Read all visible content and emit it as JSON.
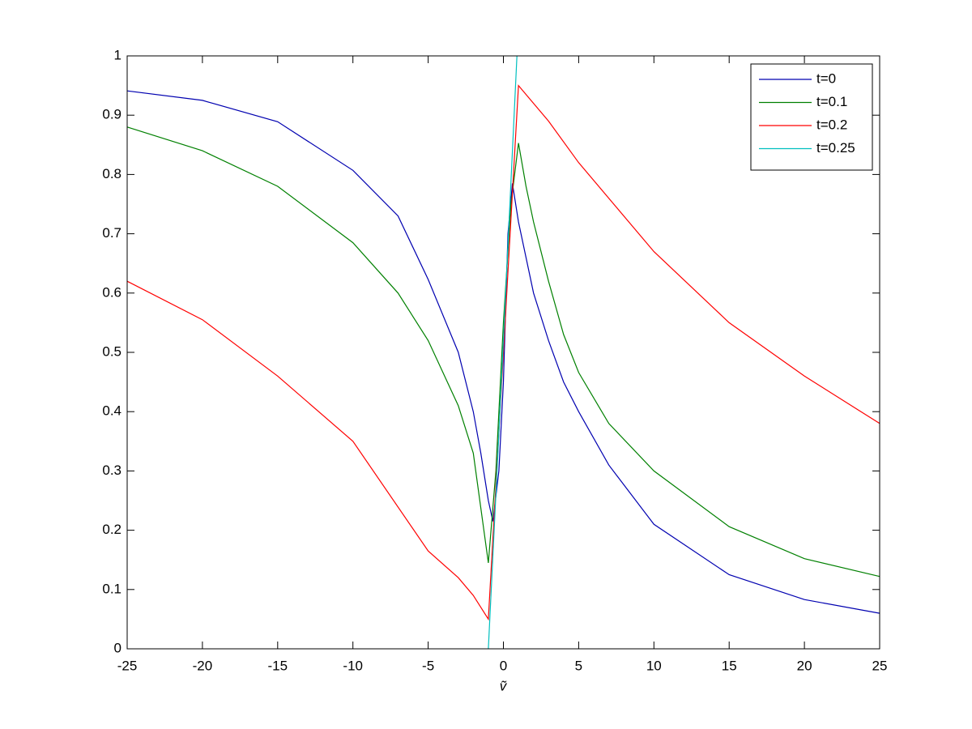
{
  "chart_data": {
    "type": "line",
    "xlabel": "ṽ",
    "xlim": [
      -25,
      25
    ],
    "xticks": [
      -25,
      -20,
      -15,
      -10,
      -5,
      0,
      5,
      10,
      15,
      20,
      25
    ],
    "ylim": [
      0,
      1
    ],
    "yticks": [
      0,
      0.1,
      0.2,
      0.3,
      0.4,
      0.5,
      0.6,
      0.7,
      0.8,
      0.9,
      1
    ],
    "legend": "upper-right",
    "series": [
      {
        "name": "t=0",
        "color": "#0000b0",
        "x": [
          -25,
          -20,
          -15,
          -10,
          -7,
          -5,
          -3,
          -2,
          -1.5,
          -1,
          -0.7,
          -0.3,
          0,
          0.3,
          0.6,
          1,
          1.5,
          2,
          3,
          4,
          5,
          7,
          10,
          15,
          20,
          25
        ],
        "values": [
          0.941,
          0.925,
          0.889,
          0.807,
          0.73,
          0.623,
          0.5,
          0.4,
          0.33,
          0.25,
          0.215,
          0.3,
          0.45,
          0.7,
          0.785,
          0.72,
          0.66,
          0.6,
          0.52,
          0.45,
          0.4,
          0.31,
          0.21,
          0.125,
          0.083,
          0.06
        ]
      },
      {
        "name": "t=0.1",
        "color": "#008000",
        "x": [
          -25,
          -20,
          -15,
          -10,
          -7,
          -5,
          -3,
          -2,
          -1,
          -0.5,
          0,
          0.5,
          1,
          1.5,
          2,
          3,
          4,
          5,
          7,
          10,
          15,
          20,
          25
        ],
        "values": [
          0.88,
          0.84,
          0.78,
          0.685,
          0.6,
          0.52,
          0.41,
          0.33,
          0.145,
          0.3,
          0.55,
          0.75,
          0.853,
          0.78,
          0.72,
          0.62,
          0.53,
          0.466,
          0.38,
          0.3,
          0.206,
          0.152,
          0.122
        ]
      },
      {
        "name": "t=0.2",
        "color": "#ff0000",
        "x": [
          -25,
          -20,
          -15,
          -10,
          -5,
          -3,
          -2,
          -1,
          0,
          1,
          2,
          3,
          5,
          10,
          15,
          20,
          25
        ],
        "values": [
          0.62,
          0.555,
          0.46,
          0.35,
          0.165,
          0.12,
          0.09,
          0.05,
          0.5,
          0.95,
          0.92,
          0.89,
          0.82,
          0.67,
          0.55,
          0.46,
          0.38
        ]
      },
      {
        "name": "t=0.25",
        "color": "#00bfbf",
        "x": [
          -1,
          0,
          0.9
        ],
        "values": [
          0,
          0.52,
          1
        ]
      }
    ]
  }
}
